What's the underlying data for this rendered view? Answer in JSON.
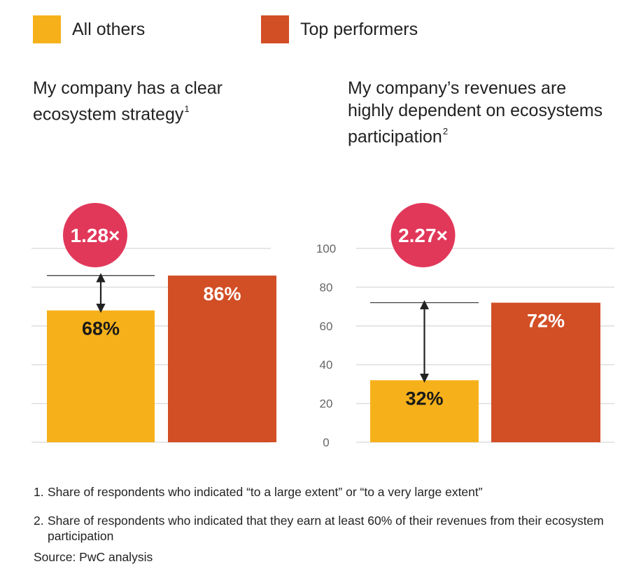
{
  "legend": [
    {
      "label": "All others",
      "color": "#F6B11A"
    },
    {
      "label": "Top performers",
      "color": "#D24E25"
    }
  ],
  "badge_color": "#E1385A",
  "chart_data": [
    {
      "type": "bar",
      "title": "My company has a clear ecosystem strategy",
      "title_lines": [
        "My company has a clear",
        "ecosystem strategy"
      ],
      "footnote_ref": "1",
      "categories": [
        "All others",
        "Top performers"
      ],
      "values": [
        68,
        86
      ],
      "data_labels": [
        "68%",
        "86%"
      ],
      "ratio_label": "1.28×",
      "ylim": [
        0,
        100
      ],
      "yticks": [],
      "grid": true
    },
    {
      "type": "bar",
      "title": "My company’s revenues are highly dependent on ecosystems participation",
      "title_lines": [
        "My company’s revenues are",
        "highly dependent on ecosystems",
        "participation"
      ],
      "footnote_ref": "2",
      "categories": [
        "All others",
        "Top performers"
      ],
      "values": [
        32,
        72
      ],
      "data_labels": [
        "32%",
        "72%"
      ],
      "ratio_label": "2.27×",
      "ylim": [
        0,
        100
      ],
      "yticks": [
        "0",
        "20",
        "40",
        "60",
        "80",
        "100"
      ],
      "grid": true
    }
  ],
  "footnotes": [
    {
      "num": "1.",
      "text": "Share of respondents who indicated “to a large extent” or “to a very large extent”"
    },
    {
      "num": "2.",
      "text": "Share of respondents who indicated that they earn at least 60% of their revenues from their ecosystem participation"
    }
  ],
  "source": "Source: PwC analysis"
}
